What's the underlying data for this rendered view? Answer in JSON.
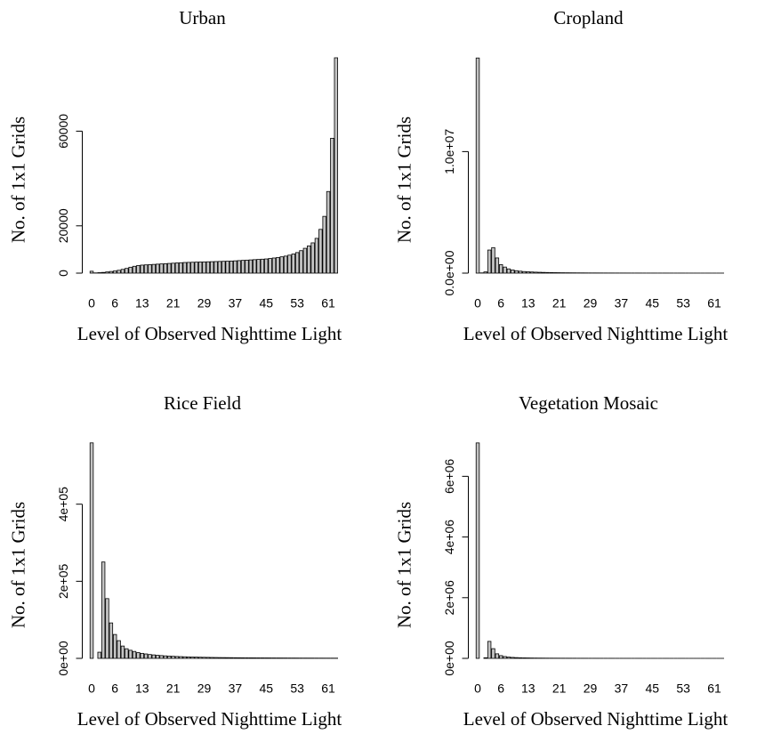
{
  "chart_data": [
    {
      "type": "bar",
      "title": "Urban",
      "xlabel": "Level of Observed Nighttime Light",
      "ylabel": "No. of 1x1 Grids",
      "categories": [
        "0",
        null,
        null,
        null,
        null,
        null,
        "6",
        null,
        null,
        null,
        null,
        null,
        null,
        "13",
        null,
        null,
        null,
        null,
        null,
        null,
        null,
        "21",
        null,
        null,
        null,
        null,
        null,
        null,
        null,
        "29",
        null,
        null,
        null,
        null,
        null,
        null,
        null,
        "37",
        null,
        null,
        null,
        null,
        null,
        null,
        null,
        "45",
        null,
        null,
        null,
        null,
        null,
        null,
        null,
        "53",
        null,
        null,
        null,
        null,
        null,
        null,
        null,
        "61",
        null,
        null
      ],
      "values": [
        800,
        100,
        200,
        300,
        500,
        700,
        900,
        1200,
        1600,
        2000,
        2500,
        2900,
        3200,
        3400,
        3500,
        3600,
        3700,
        3800,
        3900,
        4000,
        4100,
        4200,
        4300,
        4400,
        4500,
        4550,
        4600,
        4650,
        4700,
        4750,
        4800,
        4850,
        4900,
        4950,
        5000,
        5050,
        5100,
        5200,
        5300,
        5400,
        5500,
        5600,
        5700,
        5800,
        5900,
        6000,
        6200,
        6400,
        6600,
        6900,
        7200,
        7600,
        8100,
        8700,
        9500,
        10500,
        11500,
        12800,
        14700,
        18500,
        24000,
        34500,
        57000,
        91000
      ],
      "color": "#c4c4c4",
      "ylim": [
        0,
        94000
      ],
      "yticks": [
        0,
        20000,
        60000
      ]
    },
    {
      "type": "bar",
      "title": "Cropland",
      "xlabel": "Level of Observed Nighttime Light",
      "ylabel": "No. of 1x1 Grids",
      "categories": [
        "0",
        null,
        null,
        null,
        null,
        null,
        "6",
        null,
        null,
        null,
        null,
        null,
        null,
        "13",
        null,
        null,
        null,
        null,
        null,
        null,
        null,
        "21",
        null,
        null,
        null,
        null,
        null,
        null,
        null,
        "29",
        null,
        null,
        null,
        null,
        null,
        null,
        null,
        "37",
        null,
        null,
        null,
        null,
        null,
        null,
        null,
        "45",
        null,
        null,
        null,
        null,
        null,
        null,
        null,
        "53",
        null,
        null,
        null,
        null,
        null,
        null,
        null,
        "61",
        null,
        null
      ],
      "values": [
        17700000,
        20000,
        100000,
        1900000,
        2100000,
        1250000,
        700000,
        500000,
        350000,
        260000,
        200000,
        160000,
        130000,
        110000,
        95000,
        80000,
        70000,
        60000,
        52000,
        46000,
        40000,
        36000,
        32000,
        29000,
        26000,
        24000,
        22000,
        20000,
        18000,
        17000,
        16000,
        15000,
        14000,
        13000,
        12000,
        11500,
        11000,
        10500,
        10000,
        9500,
        9000,
        8500,
        8000,
        7500,
        7000,
        6800,
        6600,
        6400,
        6200,
        6000,
        5800,
        5600,
        5400,
        5200,
        5000,
        4800,
        4600,
        4400,
        4200,
        4000,
        3800,
        3600,
        3400,
        3200
      ],
      "color": "#c4c4c4",
      "ylim": [
        0,
        18300000
      ],
      "yticks": [
        {
          "value": 0,
          "label": "0.0e+00"
        },
        {
          "value": 10000000,
          "label": "1.0e+07"
        }
      ]
    },
    {
      "type": "bar",
      "title": "Rice Field",
      "xlabel": "Level of Observed Nighttime Light",
      "ylabel": "No. of 1x1 Grids",
      "categories": [
        "0",
        null,
        null,
        null,
        null,
        null,
        "6",
        null,
        null,
        null,
        null,
        null,
        null,
        "13",
        null,
        null,
        null,
        null,
        null,
        null,
        null,
        "21",
        null,
        null,
        null,
        null,
        null,
        null,
        null,
        "29",
        null,
        null,
        null,
        null,
        null,
        null,
        null,
        "37",
        null,
        null,
        null,
        null,
        null,
        null,
        null,
        "45",
        null,
        null,
        null,
        null,
        null,
        null,
        null,
        "53",
        null,
        null,
        null,
        null,
        null,
        null,
        null,
        "61",
        null,
        null
      ],
      "values": [
        559000,
        0,
        16000,
        250000,
        155000,
        92000,
        62000,
        46000,
        32000,
        25000,
        21000,
        18000,
        15000,
        13000,
        11500,
        10000,
        9000,
        8000,
        7200,
        6500,
        5900,
        5400,
        4900,
        4500,
        4100,
        3800,
        3500,
        3200,
        3000,
        2800,
        2600,
        2400,
        2250,
        2100,
        2000,
        1900,
        1800,
        1700,
        1600,
        1500,
        1450,
        1400,
        1350,
        1300,
        1250,
        1200,
        1150,
        1100,
        1050,
        1000,
        960,
        920,
        880,
        840,
        800,
        770,
        740,
        710,
        680,
        650,
        620,
        600,
        580,
        560
      ],
      "color": "#c4c4c4",
      "ylim": [
        0,
        577000
      ],
      "yticks": [
        {
          "value": 0,
          "label": "0e+00"
        },
        {
          "value": 200000,
          "label": "2e+05"
        },
        {
          "value": 400000,
          "label": "4e+05"
        }
      ]
    },
    {
      "type": "bar",
      "title": "Vegetation Mosaic",
      "xlabel": "Level of Observed Nighttime Light",
      "ylabel": "No. of 1x1 Grids",
      "categories": [
        "0",
        null,
        null,
        null,
        null,
        null,
        "6",
        null,
        null,
        null,
        null,
        null,
        null,
        "13",
        null,
        null,
        null,
        null,
        null,
        null,
        null,
        "21",
        null,
        null,
        null,
        null,
        null,
        null,
        null,
        "29",
        null,
        null,
        null,
        null,
        null,
        null,
        null,
        "37",
        null,
        null,
        null,
        null,
        null,
        null,
        null,
        "45",
        null,
        null,
        null,
        null,
        null,
        null,
        null,
        "53",
        null,
        null,
        null,
        null,
        null,
        null,
        null,
        "61",
        null,
        null
      ],
      "values": [
        7100000,
        0,
        20000,
        560000,
        320000,
        150000,
        90000,
        60000,
        42000,
        32000,
        25000,
        20000,
        17000,
        14500,
        12500,
        11000,
        9800,
        8800,
        8000,
        7300,
        6700,
        6200,
        5700,
        5300,
        4900,
        4600,
        4300,
        4000,
        3800,
        3600,
        3400,
        3200,
        3000,
        2850,
        2700,
        2550,
        2400,
        2300,
        2200,
        2100,
        2000,
        1900,
        1820,
        1740,
        1660,
        1580,
        1500,
        1440,
        1380,
        1320,
        1260,
        1200,
        1150,
        1100,
        1050,
        1000,
        960,
        920,
        880,
        840,
        800,
        770,
        740,
        710
      ],
      "color": "#c4c4c4",
      "ylim": [
        0,
        7330000
      ],
      "yticks": [
        {
          "value": 0,
          "label": "0e+00"
        },
        {
          "value": 2000000,
          "label": "2e+06"
        },
        {
          "value": 4000000,
          "label": "4e+06"
        },
        {
          "value": 6000000,
          "label": "6e+06"
        }
      ]
    }
  ]
}
